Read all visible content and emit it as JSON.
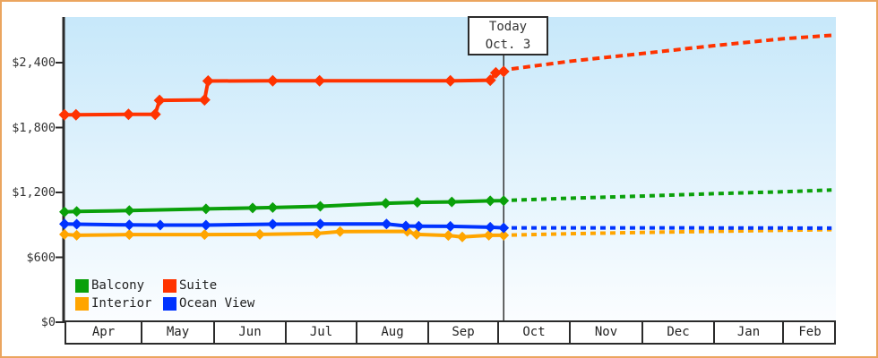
{
  "today_box": {
    "line1": "Today",
    "line2": "Oct. 3"
  },
  "axis": {
    "y_tick_labels": [
      "$2,400",
      "$1,800",
      "$1,200",
      "$600",
      "$0"
    ],
    "y_tick_values": [
      2400,
      1800,
      1200,
      600,
      0
    ],
    "months": [
      "Apr",
      "May",
      "Jun",
      "Jul",
      "Aug",
      "Sep",
      "Oct",
      "Nov",
      "Dec",
      "Jan",
      "Feb"
    ]
  },
  "legend": {
    "items": [
      {
        "label": "Balcony",
        "color": "#0aa00a"
      },
      {
        "label": "Suite",
        "color": "#ff3300"
      },
      {
        "label": "Interior",
        "color": "#ffa500"
      },
      {
        "label": "Ocean View",
        "color": "#0033ff"
      }
    ]
  },
  "colors": {
    "frame_border": "#eba55f",
    "plot_top": "#c7e8fa",
    "plot_bottom": "#fbfdff",
    "axis": "#2b2b2b",
    "text": "#333333",
    "today_line": "#333333"
  },
  "chart_data": {
    "type": "line",
    "title": "",
    "x_unit": "months_since_Apr_1 (timeline Apr through Feb)",
    "x_categories": [
      "Apr",
      "May",
      "Jun",
      "Jul",
      "Aug",
      "Sep",
      "Oct",
      "Nov",
      "Dec",
      "Jan",
      "Feb"
    ],
    "y_ticks": [
      0,
      600,
      1200,
      1800,
      2400
    ],
    "y_tick_labels": [
      "$0",
      "$600",
      "$1,200",
      "$1,800",
      "$2,400"
    ],
    "ylim": [
      0,
      2820
    ],
    "grid": false,
    "legend_position": "inside-bottom-left",
    "today": {
      "label_line1": "Today",
      "label_line2": "Oct. 3",
      "x_months_from_apr": 6.09
    },
    "line_style_note": "solid with diamond markers before today; dotted after today",
    "series": [
      {
        "name": "Interior",
        "color": "#ffa500",
        "past": [
          [
            0,
            812
          ],
          [
            0.16,
            804
          ],
          [
            0.85,
            810
          ],
          [
            1.88,
            810
          ],
          [
            2.65,
            812
          ],
          [
            3.45,
            820
          ],
          [
            3.78,
            838
          ],
          [
            4.72,
            840
          ],
          [
            4.85,
            812
          ],
          [
            5.3,
            802
          ],
          [
            5.5,
            788
          ],
          [
            5.88,
            804
          ],
          [
            6.09,
            804
          ]
        ],
        "forecast": [
          [
            6.2,
            806
          ],
          [
            7,
            818
          ],
          [
            8,
            830
          ],
          [
            9,
            840
          ],
          [
            10,
            850
          ],
          [
            10.92,
            856
          ]
        ]
      },
      {
        "name": "Ocean View",
        "color": "#0033ff",
        "past": [
          [
            0,
            908
          ],
          [
            0.16,
            906
          ],
          [
            0.85,
            900
          ],
          [
            1.27,
            898
          ],
          [
            1.9,
            898
          ],
          [
            2.83,
            906
          ],
          [
            3.5,
            908
          ],
          [
            4.43,
            908
          ],
          [
            4.7,
            890
          ],
          [
            4.88,
            888
          ],
          [
            5.33,
            886
          ],
          [
            5.9,
            878
          ],
          [
            6.09,
            872
          ]
        ],
        "forecast": [
          [
            6.2,
            872
          ],
          [
            8,
            872
          ],
          [
            10,
            871
          ],
          [
            10.92,
            870
          ]
        ]
      },
      {
        "name": "Balcony",
        "color": "#0aa00a",
        "past": [
          [
            0,
            1020
          ],
          [
            0.16,
            1024
          ],
          [
            0.85,
            1032
          ],
          [
            1.9,
            1048
          ],
          [
            2.55,
            1056
          ],
          [
            2.83,
            1060
          ],
          [
            3.5,
            1072
          ],
          [
            4.42,
            1100
          ],
          [
            4.86,
            1108
          ],
          [
            5.35,
            1112
          ],
          [
            5.9,
            1122
          ],
          [
            6.09,
            1124
          ]
        ],
        "forecast": [
          [
            6.2,
            1128
          ],
          [
            7,
            1146
          ],
          [
            8,
            1166
          ],
          [
            9,
            1188
          ],
          [
            10,
            1206
          ],
          [
            10.92,
            1222
          ]
        ]
      },
      {
        "name": "Suite",
        "color": "#ff3300",
        "past": [
          [
            0,
            1918
          ],
          [
            0.15,
            1918
          ],
          [
            0.84,
            1922
          ],
          [
            1.2,
            1922
          ],
          [
            1.26,
            2052
          ],
          [
            1.88,
            2056
          ],
          [
            1.93,
            2230
          ],
          [
            2.83,
            2232
          ],
          [
            3.49,
            2232
          ],
          [
            5.33,
            2232
          ],
          [
            5.9,
            2238
          ],
          [
            5.98,
            2306
          ],
          [
            6.09,
            2318
          ]
        ],
        "forecast": [
          [
            6.2,
            2342
          ],
          [
            7,
            2412
          ],
          [
            8,
            2484
          ],
          [
            9,
            2556
          ],
          [
            10,
            2620
          ],
          [
            10.95,
            2654
          ]
        ]
      }
    ]
  }
}
